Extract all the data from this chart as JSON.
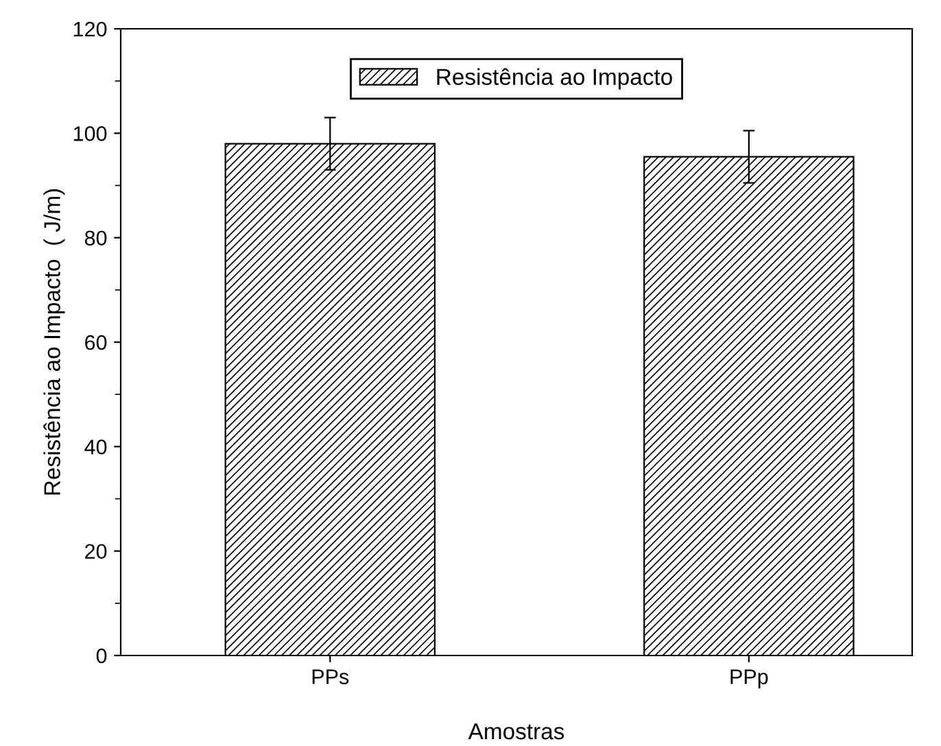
{
  "chart_data": {
    "type": "bar",
    "xlabel": "Amostras",
    "ylabel": "Resistência ao Impacto  ( J/m)",
    "categories": [
      "PPs",
      "PPp"
    ],
    "series": [
      {
        "name": "Resistência ao Impacto",
        "color": "#000000",
        "values": [
          98,
          95.5
        ],
        "errors": [
          5,
          5
        ]
      }
    ],
    "ylim": [
      0,
      120
    ],
    "yticks": [
      0,
      20,
      40,
      60,
      80,
      100,
      120
    ],
    "grid": false,
    "legend": "top"
  }
}
